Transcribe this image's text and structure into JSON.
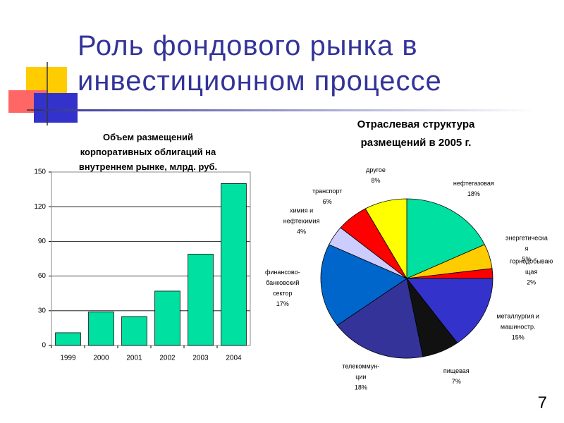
{
  "header": {
    "title": "Роль фондового рынка в\nинвестиционном процессе"
  },
  "page_number": "7",
  "chart_data": [
    {
      "type": "bar",
      "title": "Объем размещений\nкорпоративных облигаций на\nвнутреннем рынке, млрд. руб.",
      "categories": [
        "1999",
        "2000",
        "2001",
        "2002",
        "2003",
        "2004"
      ],
      "values": [
        11,
        29,
        25,
        47,
        79,
        140
      ],
      "color": "#00e0a0",
      "ylim": [
        0,
        150
      ],
      "yticks": [
        0,
        30,
        60,
        90,
        120,
        150
      ],
      "grid": true
    },
    {
      "type": "pie",
      "title": "Отраслевая структура\nразмещений в 2005 г.",
      "categories": [
        "нефтегазовая",
        "энергетическа\nя",
        "горнодобываю\nщая",
        "металлургия и\nмашиностр.",
        "пищевая",
        "телекоммун-\nции",
        "финансово-\nбанковский\nсектор",
        "химия и\nнефтехимия",
        "транспорт",
        "другое"
      ],
      "values": [
        18,
        5,
        2,
        15,
        7,
        18,
        17,
        4,
        6,
        8
      ],
      "value_labels": [
        "18%",
        "5%",
        "2%",
        "15%",
        "7%",
        "18%",
        "17%",
        "4%",
        "6%",
        "8%"
      ],
      "colors": [
        "#00e0a0",
        "#ffcc00",
        "#ff0000",
        "#3333cc",
        "#111111",
        "#333399",
        "#0066cc",
        "#ccccff",
        "#ff0000",
        "#ffff00"
      ]
    }
  ]
}
